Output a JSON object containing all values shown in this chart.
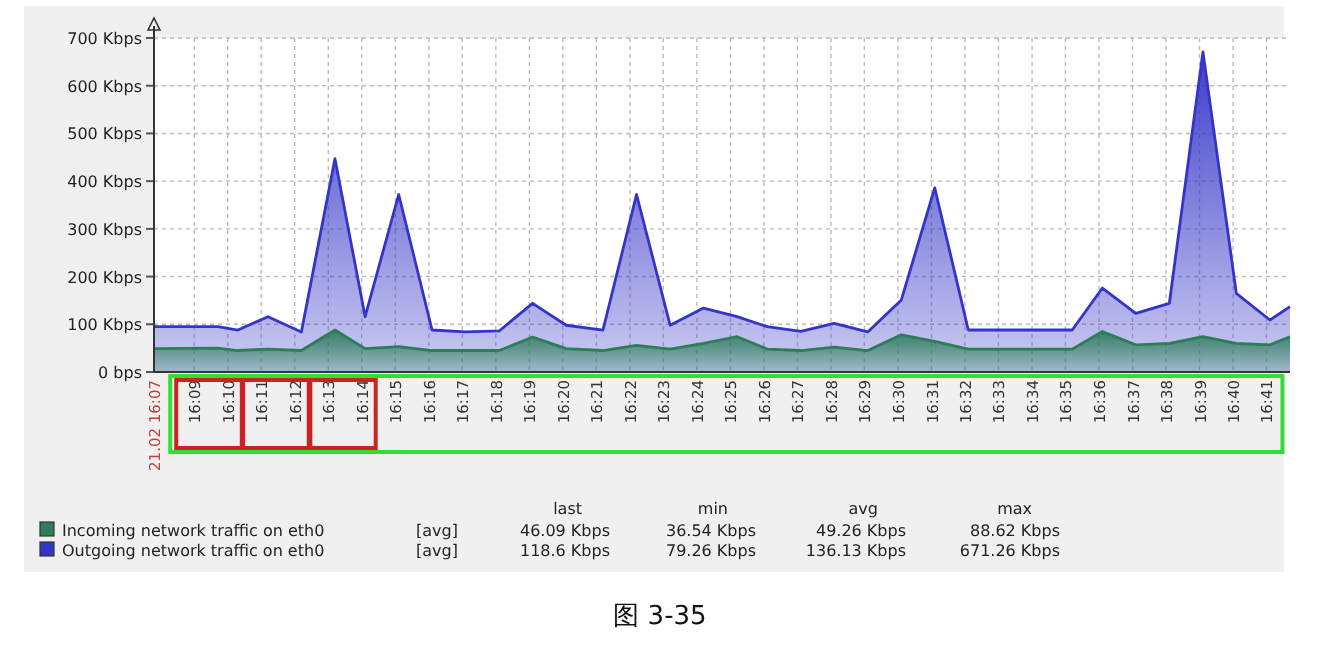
{
  "chart_data": {
    "type": "area",
    "x": [
      16.13,
      16.1617,
      16.1717,
      16.1867,
      16.2033,
      16.22,
      16.235,
      16.2517,
      16.2683,
      16.285,
      16.3017,
      16.3183,
      16.335,
      16.3533,
      16.37,
      16.3867,
      16.4033,
      16.42,
      16.435,
      16.4517,
      16.4683,
      16.485,
      16.5017,
      16.5183,
      16.535,
      16.5867,
      16.6017,
      16.6183,
      16.635,
      16.6517,
      16.6683,
      16.685,
      16.695
    ],
    "series": [
      {
        "name": "Incoming network traffic on eth0",
        "color": "#2d7d5a",
        "values": [
          49,
          50,
          45,
          48,
          45,
          88,
          49,
          53,
          45,
          45,
          45,
          73,
          49,
          45,
          56,
          48,
          60,
          74,
          48,
          45,
          52,
          45,
          78,
          64,
          48,
          48,
          85,
          57,
          60,
          74,
          60,
          57,
          74
        ]
      },
      {
        "name": "Outgoing network traffic on eth0",
        "color": "#3434c8",
        "values": [
          95,
          95,
          88,
          116,
          84,
          447,
          116,
          372,
          88,
          84,
          86,
          144,
          98,
          88,
          372,
          98,
          134,
          116,
          95,
          85,
          102,
          84,
          151,
          386,
          88,
          88,
          176,
          123,
          144,
          671,
          165,
          109,
          137
        ]
      }
    ],
    "xlim": [
      16.13,
      16.695
    ],
    "xticks": [
      {
        "value": 16.13,
        "label": "21.02 16:07"
      },
      {
        "value": 16.15,
        "label": "16:09"
      },
      {
        "value": 16.1667,
        "label": "16:10"
      },
      {
        "value": 16.1833,
        "label": "16:11"
      },
      {
        "value": 16.2,
        "label": "16:12"
      },
      {
        "value": 16.2167,
        "label": "16:13"
      },
      {
        "value": 16.2333,
        "label": "16:14"
      },
      {
        "value": 16.25,
        "label": "16:15"
      },
      {
        "value": 16.2667,
        "label": "16:16"
      },
      {
        "value": 16.2833,
        "label": "16:17"
      },
      {
        "value": 16.3,
        "label": "16:18"
      },
      {
        "value": 16.3167,
        "label": "16:19"
      },
      {
        "value": 16.3333,
        "label": "16:20"
      },
      {
        "value": 16.35,
        "label": "16:21"
      },
      {
        "value": 16.3667,
        "label": "16:22"
      },
      {
        "value": 16.3833,
        "label": "16:23"
      },
      {
        "value": 16.4,
        "label": "16:24"
      },
      {
        "value": 16.4167,
        "label": "16:25"
      },
      {
        "value": 16.4333,
        "label": "16:26"
      },
      {
        "value": 16.45,
        "label": "16:27"
      },
      {
        "value": 16.4667,
        "label": "16:28"
      },
      {
        "value": 16.4833,
        "label": "16:29"
      },
      {
        "value": 16.5,
        "label": "16:30"
      },
      {
        "value": 16.5167,
        "label": "16:31"
      },
      {
        "value": 16.5333,
        "label": "16:32"
      },
      {
        "value": 16.55,
        "label": "16:33"
      },
      {
        "value": 16.5667,
        "label": "16:34"
      },
      {
        "value": 16.5833,
        "label": "16:35"
      },
      {
        "value": 16.6,
        "label": "16:36"
      },
      {
        "value": 16.6167,
        "label": "16:37"
      },
      {
        "value": 16.6333,
        "label": "16:38"
      },
      {
        "value": 16.65,
        "label": "16:39"
      },
      {
        "value": 16.6667,
        "label": "16:40"
      },
      {
        "value": 16.6833,
        "label": "16:41"
      }
    ],
    "ylim": [
      0,
      700
    ],
    "yticks": [
      {
        "value": 0,
        "label": "0 bps"
      },
      {
        "value": 100,
        "label": "100 Kbps"
      },
      {
        "value": 200,
        "label": "200 Kbps"
      },
      {
        "value": 300,
        "label": "300 Kbps"
      },
      {
        "value": 400,
        "label": "400 Kbps"
      },
      {
        "value": 500,
        "label": "500 Kbps"
      },
      {
        "value": 600,
        "label": "600 Kbps"
      },
      {
        "value": 700,
        "label": "700 Kbps"
      }
    ],
    "grid": true,
    "legend": "bottom",
    "annotations": [
      "last",
      "min",
      "avg",
      "max",
      "[avg]",
      "46.09 Kbps",
      "36.54 Kbps",
      "49.26 Kbps",
      "88.62 Kbps",
      "[avg]",
      "118.6 Kbps",
      "79.26 Kbps",
      "136.13 Kbps",
      "671.26 Kbps",
      "图 3-35"
    ]
  }
}
